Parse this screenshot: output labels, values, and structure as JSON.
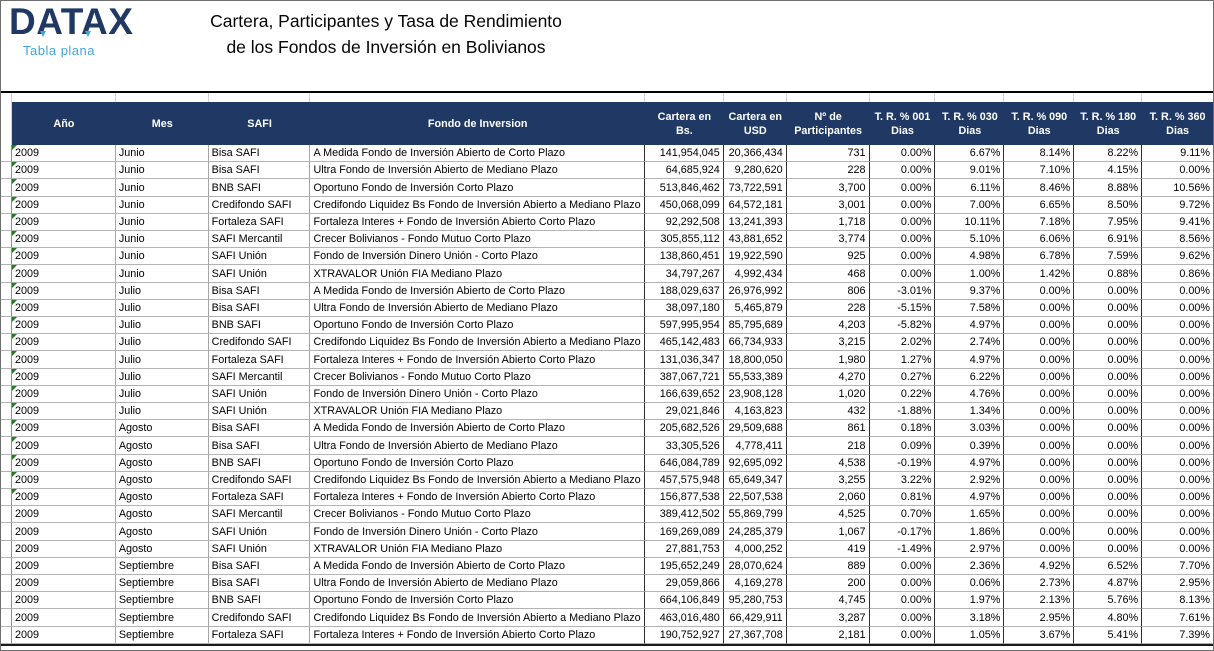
{
  "logo": {
    "name": "DATAX",
    "subtitle": "Tabla plana",
    "colors": {
      "navy": "#1F3864",
      "light_blue": "#3FA7DC"
    }
  },
  "title": {
    "line1": "Cartera, Participantes y Tasa de Rendimiento",
    "line2": "de los Fondos de Inversión en Bolivianos"
  },
  "table": {
    "header_bg": "#1F3864",
    "flag_color": "#1E7E1E",
    "columns": [
      {
        "key": "ano",
        "label": "Año"
      },
      {
        "key": "mes",
        "label": "Mes"
      },
      {
        "key": "safi",
        "label": "SAFI"
      },
      {
        "key": "fondo",
        "label": "Fondo de Inversion"
      },
      {
        "key": "cartera_bs",
        "label": "Cartera en\nBs."
      },
      {
        "key": "cartera_usd",
        "label": "Cartera en\nUSD"
      },
      {
        "key": "participantes",
        "label": "Nº de\nParticipantes"
      },
      {
        "key": "tr_001",
        "label": "T. R. % 001\nDias"
      },
      {
        "key": "tr_030",
        "label": "T. R. % 030\nDias"
      },
      {
        "key": "tr_090",
        "label": "T. R. % 090\nDias"
      },
      {
        "key": "tr_180",
        "label": "T. R. % 180\nDias"
      },
      {
        "key": "tr_360",
        "label": "T. R. % 360\nDias"
      }
    ],
    "error_flag_rows": [
      0,
      1,
      2,
      3,
      4,
      5,
      6,
      7,
      8,
      9,
      10,
      11,
      12,
      13,
      14,
      15,
      16,
      17,
      18,
      19,
      20
    ],
    "rows": [
      [
        "2009",
        "Junio",
        "Bisa SAFI",
        "A Medida Fondo de Inversión Abierto de Corto Plazo",
        "141,954,045",
        "20,366,434",
        "731",
        "0.00%",
        "6.67%",
        "8.14%",
        "8.22%",
        "9.11%"
      ],
      [
        "2009",
        "Junio",
        "Bisa SAFI",
        "Ultra Fondo de Inversión Abierto de Mediano Plazo",
        "64,685,924",
        "9,280,620",
        "228",
        "0.00%",
        "9.01%",
        "7.10%",
        "4.15%",
        "0.00%"
      ],
      [
        "2009",
        "Junio",
        "BNB SAFI",
        "Oportuno Fondo de Inversión Corto Plazo",
        "513,846,462",
        "73,722,591",
        "3,700",
        "0.00%",
        "6.11%",
        "8.46%",
        "8.88%",
        "10.56%"
      ],
      [
        "2009",
        "Junio",
        "Credifondo SAFI",
        "Credifondo Liquidez Bs Fondo de Inversión Abierto a Mediano Plazo",
        "450,068,099",
        "64,572,181",
        "3,001",
        "0.00%",
        "7.00%",
        "6.65%",
        "8.50%",
        "9.72%"
      ],
      [
        "2009",
        "Junio",
        "Fortaleza SAFI",
        "Fortaleza Interes + Fondo de Inversión Abierto Corto Plazo",
        "92,292,508",
        "13,241,393",
        "1,718",
        "0.00%",
        "10.11%",
        "7.18%",
        "7.95%",
        "9.41%"
      ],
      [
        "2009",
        "Junio",
        "SAFI Mercantil",
        "Crecer Bolivianos - Fondo Mutuo Corto Plazo",
        "305,855,112",
        "43,881,652",
        "3,774",
        "0.00%",
        "5.10%",
        "6.06%",
        "6.91%",
        "8.56%"
      ],
      [
        "2009",
        "Junio",
        "SAFI Unión",
        "Fondo de Inversión Dinero Unión - Corto Plazo",
        "138,860,451",
        "19,922,590",
        "925",
        "0.00%",
        "4.98%",
        "6.78%",
        "7.59%",
        "9.62%"
      ],
      [
        "2009",
        "Junio",
        "SAFI Unión",
        "XTRAVALOR Unión FIA Mediano Plazo",
        "34,797,267",
        "4,992,434",
        "468",
        "0.00%",
        "1.00%",
        "1.42%",
        "0.88%",
        "0.86%"
      ],
      [
        "2009",
        "Julio",
        "Bisa SAFI",
        "A Medida Fondo de Inversión Abierto de Corto Plazo",
        "188,029,637",
        "26,976,992",
        "806",
        "-3.01%",
        "9.37%",
        "0.00%",
        "0.00%",
        "0.00%"
      ],
      [
        "2009",
        "Julio",
        "Bisa SAFI",
        "Ultra Fondo de Inversión Abierto de Mediano Plazo",
        "38,097,180",
        "5,465,879",
        "228",
        "-5.15%",
        "7.58%",
        "0.00%",
        "0.00%",
        "0.00%"
      ],
      [
        "2009",
        "Julio",
        "BNB SAFI",
        "Oportuno Fondo de Inversión Corto Plazo",
        "597,995,954",
        "85,795,689",
        "4,203",
        "-5.82%",
        "4.97%",
        "0.00%",
        "0.00%",
        "0.00%"
      ],
      [
        "2009",
        "Julio",
        "Credifondo SAFI",
        "Credifondo Liquidez Bs Fondo de Inversión Abierto a Mediano Plazo",
        "465,142,483",
        "66,734,933",
        "3,215",
        "2.02%",
        "2.74%",
        "0.00%",
        "0.00%",
        "0.00%"
      ],
      [
        "2009",
        "Julio",
        "Fortaleza SAFI",
        "Fortaleza Interes + Fondo de Inversión Abierto Corto Plazo",
        "131,036,347",
        "18,800,050",
        "1,980",
        "1.27%",
        "4.97%",
        "0.00%",
        "0.00%",
        "0.00%"
      ],
      [
        "2009",
        "Julio",
        "SAFI Mercantil",
        "Crecer Bolivianos - Fondo Mutuo Corto Plazo",
        "387,067,721",
        "55,533,389",
        "4,270",
        "0.27%",
        "6.22%",
        "0.00%",
        "0.00%",
        "0.00%"
      ],
      [
        "2009",
        "Julio",
        "SAFI Unión",
        "Fondo de Inversión Dinero Unión - Corto Plazo",
        "166,639,652",
        "23,908,128",
        "1,020",
        "0.22%",
        "4.76%",
        "0.00%",
        "0.00%",
        "0.00%"
      ],
      [
        "2009",
        "Julio",
        "SAFI Unión",
        "XTRAVALOR Unión FIA Mediano Plazo",
        "29,021,846",
        "4,163,823",
        "432",
        "-1.88%",
        "1.34%",
        "0.00%",
        "0.00%",
        "0.00%"
      ],
      [
        "2009",
        "Agosto",
        "Bisa SAFI",
        "A Medida Fondo de Inversión Abierto de Corto Plazo",
        "205,682,526",
        "29,509,688",
        "861",
        "0.18%",
        "3.03%",
        "0.00%",
        "0.00%",
        "0.00%"
      ],
      [
        "2009",
        "Agosto",
        "Bisa SAFI",
        "Ultra Fondo de Inversión Abierto de Mediano Plazo",
        "33,305,526",
        "4,778,411",
        "218",
        "0.09%",
        "0.39%",
        "0.00%",
        "0.00%",
        "0.00%"
      ],
      [
        "2009",
        "Agosto",
        "BNB SAFI",
        "Oportuno Fondo de Inversión Corto Plazo",
        "646,084,789",
        "92,695,092",
        "4,538",
        "-0.19%",
        "4.97%",
        "0.00%",
        "0.00%",
        "0.00%"
      ],
      [
        "2009",
        "Agosto",
        "Credifondo SAFI",
        "Credifondo Liquidez Bs Fondo de Inversión Abierto a Mediano Plazo",
        "457,575,948",
        "65,649,347",
        "3,255",
        "3.22%",
        "2.92%",
        "0.00%",
        "0.00%",
        "0.00%"
      ],
      [
        "2009",
        "Agosto",
        "Fortaleza SAFI",
        "Fortaleza Interes + Fondo de Inversión Abierto Corto Plazo",
        "156,877,538",
        "22,507,538",
        "2,060",
        "0.81%",
        "4.97%",
        "0.00%",
        "0.00%",
        "0.00%"
      ],
      [
        "2009",
        "Agosto",
        "SAFI Mercantil",
        "Crecer Bolivianos - Fondo Mutuo Corto Plazo",
        "389,412,502",
        "55,869,799",
        "4,525",
        "0.70%",
        "1.65%",
        "0.00%",
        "0.00%",
        "0.00%"
      ],
      [
        "2009",
        "Agosto",
        "SAFI Unión",
        "Fondo de Inversión Dinero Unión - Corto Plazo",
        "169,269,089",
        "24,285,379",
        "1,067",
        "-0.17%",
        "1.86%",
        "0.00%",
        "0.00%",
        "0.00%"
      ],
      [
        "2009",
        "Agosto",
        "SAFI Unión",
        "XTRAVALOR Unión FIA Mediano Plazo",
        "27,881,753",
        "4,000,252",
        "419",
        "-1.49%",
        "2.97%",
        "0.00%",
        "0.00%",
        "0.00%"
      ],
      [
        "2009",
        "Septiembre",
        "Bisa SAFI",
        "A Medida Fondo de Inversión Abierto de Corto Plazo",
        "195,652,249",
        "28,070,624",
        "889",
        "0.00%",
        "2.36%",
        "4.92%",
        "6.52%",
        "7.70%"
      ],
      [
        "2009",
        "Septiembre",
        "Bisa SAFI",
        "Ultra Fondo de Inversión Abierto de Mediano Plazo",
        "29,059,866",
        "4,169,278",
        "200",
        "0.00%",
        "0.06%",
        "2.73%",
        "4.87%",
        "2.95%"
      ],
      [
        "2009",
        "Septiembre",
        "BNB SAFI",
        "Oportuno Fondo de Inversión Corto Plazo",
        "664,106,849",
        "95,280,753",
        "4,745",
        "0.00%",
        "1.97%",
        "2.13%",
        "5.76%",
        "8.13%"
      ],
      [
        "2009",
        "Septiembre",
        "Credifondo SAFI",
        "Credifondo Liquidez Bs Fondo de Inversión Abierto a Mediano Plazo",
        "463,016,480",
        "66,429,911",
        "3,287",
        "0.00%",
        "3.18%",
        "2.95%",
        "4.80%",
        "7.61%"
      ],
      [
        "2009",
        "Septiembre",
        "Fortaleza SAFI",
        "Fortaleza Interes + Fondo de Inversión Abierto Corto Plazo",
        "190,752,927",
        "27,367,708",
        "2,181",
        "0.00%",
        "1.05%",
        "3.67%",
        "5.41%",
        "7.39%"
      ]
    ]
  }
}
